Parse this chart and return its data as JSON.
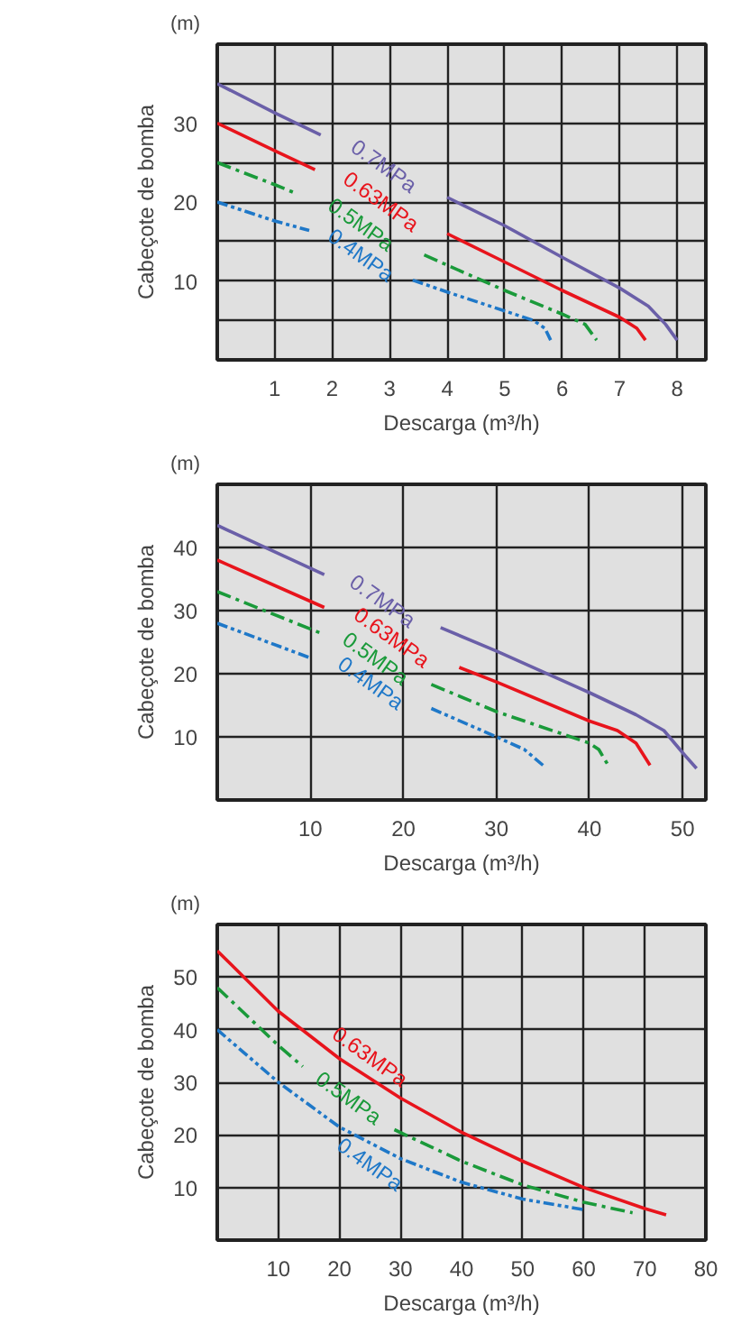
{
  "chart_data": [
    {
      "type": "line",
      "xlabel": "Descarga (m³/h)",
      "ylabel": "Cabeçote de bomba",
      "annotations": [
        "(m)"
      ],
      "xlim": [
        0,
        8.5
      ],
      "ylim": [
        0,
        40
      ],
      "xticks": [
        1,
        2,
        3,
        4,
        5,
        6,
        7,
        8
      ],
      "yticks": [
        {
          "value": 5,
          "label": null
        },
        10,
        {
          "value": 15,
          "label": null
        },
        20,
        {
          "value": 25,
          "label": null
        },
        30,
        {
          "value": 35,
          "label": null
        }
      ],
      "grid": true,
      "series": [
        {
          "name": "0.7MPa",
          "color": "#6a5fa8",
          "line_style": "solid",
          "x": [
            0,
            1,
            1.8,
            3,
            4,
            5,
            6,
            7,
            7.5,
            7.8,
            8
          ],
          "values": [
            35,
            31.3,
            28.5,
            null,
            20.6,
            17,
            13,
            9.1,
            6.8,
            4.5,
            2.5
          ]
        },
        {
          "name": "0.63MPa",
          "color": "#e8141c",
          "line_style": "solid",
          "x": [
            0,
            1,
            1.7,
            3,
            4,
            5,
            6,
            7,
            7.3,
            7.45
          ],
          "values": [
            30,
            26.5,
            24.1,
            null,
            16,
            12.4,
            8.8,
            5.4,
            4,
            2.5
          ]
        },
        {
          "name": "0.5MPa",
          "color": "#1a9a3a",
          "line_style": "dashed",
          "x": [
            0,
            1,
            1.4,
            2.5,
            3.6,
            4,
            5,
            6,
            6.4,
            6.6
          ],
          "values": [
            25,
            22.2,
            21,
            null,
            13.3,
            12,
            8.8,
            5.8,
            4.5,
            2.5
          ]
        },
        {
          "name": "0.4MPa",
          "color": "#1f78c8",
          "line_style": "dotted",
          "x": [
            0,
            1,
            1.6,
            2.5,
            3.4,
            4,
            5,
            5.5,
            5.7,
            5.8
          ],
          "values": [
            20,
            17.6,
            16.4,
            null,
            10.1,
            8.6,
            6.2,
            5,
            4,
            2.5
          ]
        }
      ]
    },
    {
      "type": "line",
      "xlabel": "Descarga (m³/h)",
      "ylabel": "Cabeçote de bomba",
      "annotations": [
        "(m)"
      ],
      "xlim": [
        0,
        52.5
      ],
      "ylim": [
        0,
        50
      ],
      "xticks": [
        10,
        20,
        30,
        40,
        50
      ],
      "yticks": [
        10,
        20,
        30,
        40
      ],
      "grid": true,
      "series": [
        {
          "name": "0.7MPa",
          "color": "#6a5fa8",
          "line_style": "solid",
          "x": [
            0,
            11.5,
            18,
            24,
            30,
            40,
            45,
            48,
            50,
            51.5
          ],
          "values": [
            43.5,
            35.7,
            null,
            27.3,
            23.6,
            17,
            13.5,
            11,
            7.5,
            5
          ]
        },
        {
          "name": "0.63MPa",
          "color": "#e8141c",
          "line_style": "solid",
          "x": [
            0,
            11.5,
            18,
            26,
            30,
            40,
            43,
            45,
            46.5
          ],
          "values": [
            38,
            30.5,
            null,
            21,
            18.7,
            12.5,
            11,
            9,
            5.5
          ]
        },
        {
          "name": "0.5MPa",
          "color": "#1a9a3a",
          "line_style": "dashed",
          "x": [
            0,
            11,
            17,
            23,
            30,
            40,
            41,
            42
          ],
          "values": [
            33,
            26.5,
            null,
            18.3,
            14,
            9,
            8,
            5.5
          ]
        },
        {
          "name": "0.4MPa",
          "color": "#1f78c8",
          "line_style": "dotted",
          "x": [
            0,
            10,
            16,
            23,
            30,
            33,
            35
          ],
          "values": [
            28,
            22.5,
            null,
            14.5,
            10,
            8,
            5.5
          ]
        }
      ]
    },
    {
      "type": "line",
      "xlabel": "Descarga (m³/h)",
      "ylabel": "Cabeçote de bomba",
      "annotations": [
        "(m)"
      ],
      "xlim": [
        0,
        80
      ],
      "ylim": [
        0,
        60
      ],
      "xticks": [
        10,
        20,
        30,
        40,
        50,
        60,
        70,
        80
      ],
      "yticks": [
        10,
        20,
        30,
        40,
        50
      ],
      "grid": true,
      "series": [
        {
          "name": "0.63MPa",
          "color": "#e8141c",
          "line_style": "solid",
          "x": [
            0,
            10,
            20,
            30,
            40,
            50,
            60,
            70,
            73.5
          ],
          "values": [
            55,
            43.5,
            34.5,
            27,
            20.5,
            15,
            10,
            6,
            4.8
          ]
        },
        {
          "name": "0.5MPa",
          "color": "#1a9a3a",
          "line_style": "dashed",
          "x": [
            0,
            10,
            14,
            22,
            29,
            40,
            50,
            60,
            68
          ],
          "values": [
            48,
            37,
            33,
            null,
            21,
            15,
            10.5,
            7.2,
            5.2
          ]
        },
        {
          "name": "0.4MPa",
          "color": "#1f78c8",
          "line_style": "dotted",
          "x": [
            0,
            10,
            20,
            30,
            40,
            50,
            60
          ],
          "values": [
            40,
            30,
            21.5,
            15.5,
            11,
            7.8,
            5.8
          ]
        }
      ]
    }
  ]
}
